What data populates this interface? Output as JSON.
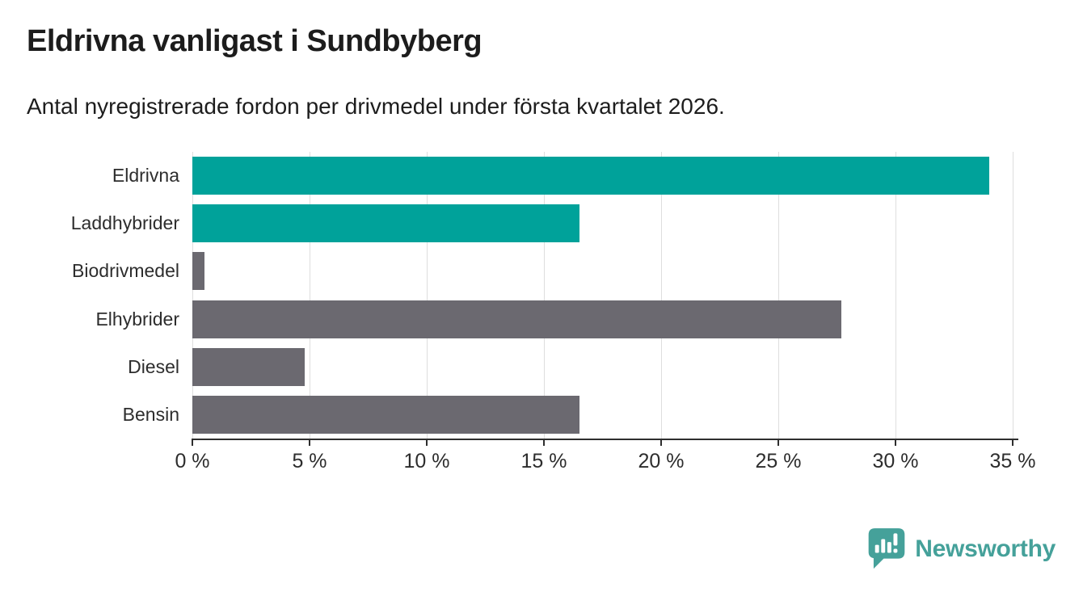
{
  "header": {
    "title": "Eldrivna vanligast i Sundbyberg",
    "subtitle": "Antal nyregistrerade fordon per drivmedel under första kvartalet 2026."
  },
  "chart_data": {
    "type": "bar",
    "orientation": "horizontal",
    "title": "Eldrivna vanligast i Sundbyberg",
    "subtitle": "Antal nyregistrerade fordon per drivmedel under första kvartalet 2026.",
    "categories": [
      "Eldrivna",
      "Laddhybrider",
      "Biodrivmedel",
      "Elhybrider",
      "Diesel",
      "Bensin"
    ],
    "values": [
      34.0,
      16.5,
      0.5,
      27.7,
      4.8,
      16.5
    ],
    "bar_colors": [
      "#00a29a",
      "#00a29a",
      "#6b6970",
      "#6b6970",
      "#6b6970",
      "#6b6970"
    ],
    "unit": "%",
    "xlabel": "",
    "ylabel": "",
    "xlim": [
      0,
      35
    ],
    "x_ticks": [
      0,
      5,
      10,
      15,
      20,
      25,
      30,
      35
    ],
    "x_tick_labels": [
      "0 %",
      "5 %",
      "10 %",
      "15 %",
      "20 %",
      "25 %",
      "30 %",
      "35 %"
    ],
    "grid": true,
    "legend": "none"
  },
  "colors": {
    "accent_teal": "#00a29a",
    "neutral_gray": "#6b6970",
    "gridline": "#dedede",
    "axis": "#2e2e2e",
    "text_dark": "#1c1c1c",
    "brand_teal": "#45a19a"
  },
  "branding": {
    "logo_text": "Newsworthy",
    "logo_icon": "newsworthy-chart-bubble-icon"
  }
}
